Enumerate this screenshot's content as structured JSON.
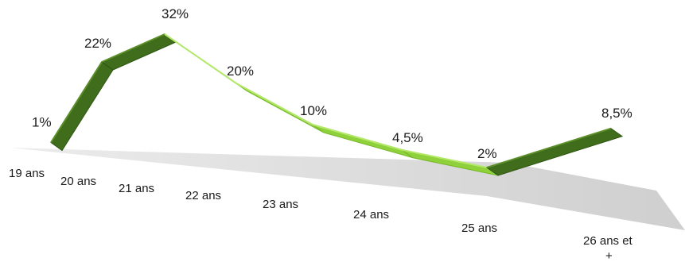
{
  "chart_data": {
    "type": "line",
    "title": "",
    "xlabel": "",
    "ylabel": "",
    "categories": [
      "19 ans",
      "20 ans",
      "21 ans",
      "22 ans",
      "23 ans",
      "24 ans",
      "25 ans",
      "26 ans et +"
    ],
    "series": [
      {
        "values": [
          1,
          22,
          32,
          20,
          10,
          4.5,
          2,
          8.5
        ],
        "data_labels": [
          "1%",
          "22%",
          "32%",
          "20%",
          "10%",
          "4,5%",
          "2%",
          "8,5%"
        ]
      }
    ],
    "ylim": [
      0,
      32
    ],
    "grid": false,
    "legend": "none",
    "style": "3d-ribbon",
    "colors": {
      "ribbon_light": "#8ed13a",
      "ribbon_dark": "#3f6d1c",
      "floor": "#d4d4d4"
    }
  }
}
